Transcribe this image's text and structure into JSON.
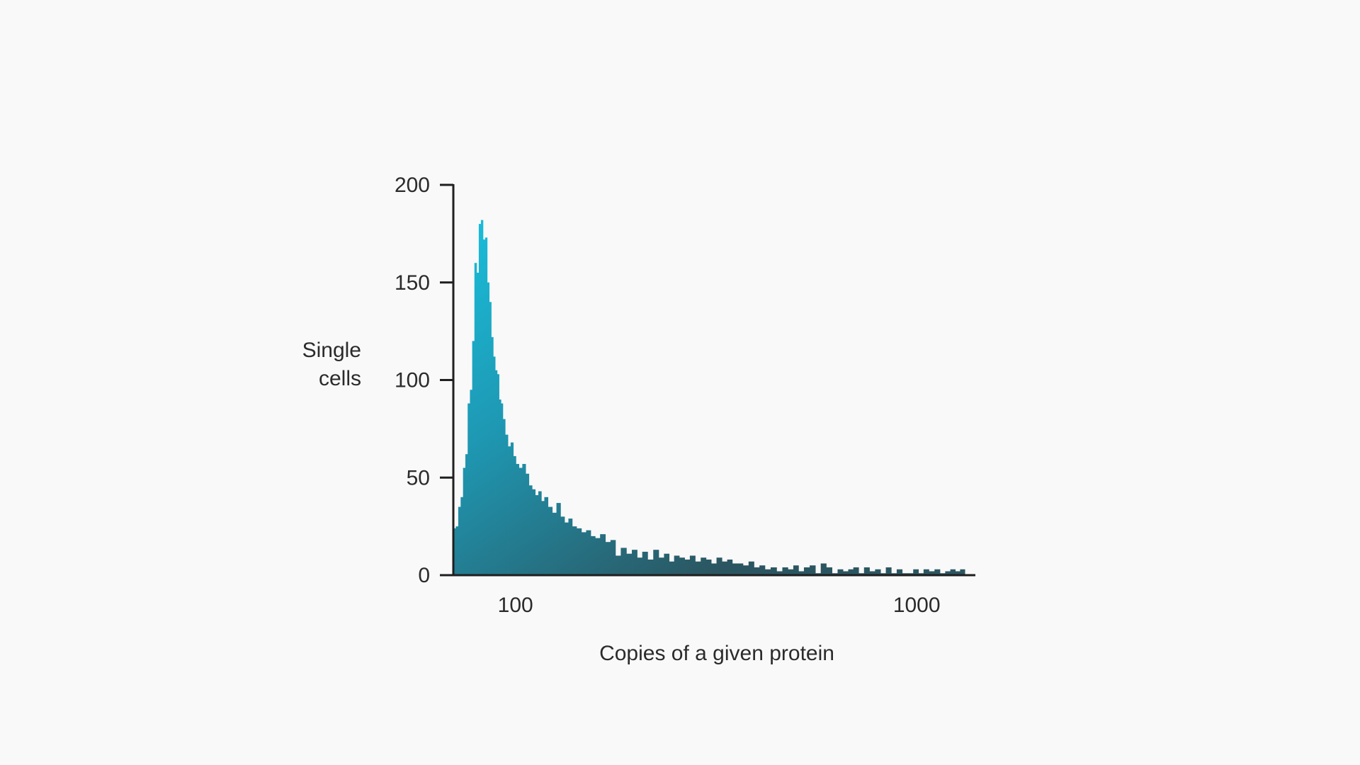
{
  "chart_data": {
    "type": "bar",
    "title": "",
    "xlabel": "Copies of a given protein",
    "ylabel": [
      "Single",
      "cells"
    ],
    "x_scale": "log",
    "xlim": [
      70,
      1400
    ],
    "ylim": [
      0,
      200
    ],
    "grid": false,
    "legend": "none",
    "y_ticks": [
      0,
      50,
      100,
      150,
      200
    ],
    "y_tick_labels": [
      "0",
      "50",
      "100",
      "150",
      "200"
    ],
    "x_ticks": [
      100,
      1000
    ],
    "x_tick_labels": [
      "100",
      "1000"
    ],
    "colors": {
      "peak": "#18b5d4",
      "tail": "#2c5560",
      "axis": "#1f1f1f",
      "background": "#f9f9f9"
    },
    "bins": [
      {
        "x": 70.5,
        "y": 24
      },
      {
        "x": 71.5,
        "y": 25
      },
      {
        "x": 72.5,
        "y": 35
      },
      {
        "x": 73.5,
        "y": 40
      },
      {
        "x": 74.5,
        "y": 55
      },
      {
        "x": 75.5,
        "y": 62
      },
      {
        "x": 76.5,
        "y": 88
      },
      {
        "x": 77.5,
        "y": 95
      },
      {
        "x": 78.5,
        "y": 120
      },
      {
        "x": 79.5,
        "y": 160
      },
      {
        "x": 80.5,
        "y": 155
      },
      {
        "x": 81.5,
        "y": 180
      },
      {
        "x": 82.5,
        "y": 182
      },
      {
        "x": 83.5,
        "y": 172
      },
      {
        "x": 84.5,
        "y": 173
      },
      {
        "x": 85.5,
        "y": 150
      },
      {
        "x": 86.5,
        "y": 140
      },
      {
        "x": 87.5,
        "y": 122
      },
      {
        "x": 88.5,
        "y": 112
      },
      {
        "x": 89.5,
        "y": 105
      },
      {
        "x": 90.5,
        "y": 103
      },
      {
        "x": 91.5,
        "y": 90
      },
      {
        "x": 92.5,
        "y": 88
      },
      {
        "x": 93.5,
        "y": 80
      },
      {
        "x": 95,
        "y": 72
      },
      {
        "x": 96.5,
        "y": 66
      },
      {
        "x": 98,
        "y": 68
      },
      {
        "x": 99.5,
        "y": 61
      },
      {
        "x": 101,
        "y": 57
      },
      {
        "x": 103,
        "y": 55
      },
      {
        "x": 105,
        "y": 57
      },
      {
        "x": 107,
        "y": 52
      },
      {
        "x": 109,
        "y": 46
      },
      {
        "x": 111,
        "y": 44
      },
      {
        "x": 113,
        "y": 41
      },
      {
        "x": 115,
        "y": 43
      },
      {
        "x": 117,
        "y": 38
      },
      {
        "x": 119,
        "y": 40
      },
      {
        "x": 122,
        "y": 35
      },
      {
        "x": 125,
        "y": 32
      },
      {
        "x": 128,
        "y": 37
      },
      {
        "x": 131,
        "y": 30
      },
      {
        "x": 134,
        "y": 27
      },
      {
        "x": 137,
        "y": 29
      },
      {
        "x": 140,
        "y": 25
      },
      {
        "x": 144,
        "y": 24
      },
      {
        "x": 148,
        "y": 22
      },
      {
        "x": 152,
        "y": 23
      },
      {
        "x": 156,
        "y": 20
      },
      {
        "x": 160,
        "y": 19
      },
      {
        "x": 165,
        "y": 21
      },
      {
        "x": 170,
        "y": 17
      },
      {
        "x": 175,
        "y": 18
      },
      {
        "x": 180,
        "y": 10
      },
      {
        "x": 186,
        "y": 14
      },
      {
        "x": 192,
        "y": 11
      },
      {
        "x": 198,
        "y": 13
      },
      {
        "x": 204,
        "y": 9
      },
      {
        "x": 210,
        "y": 12
      },
      {
        "x": 217,
        "y": 8
      },
      {
        "x": 224,
        "y": 13
      },
      {
        "x": 231,
        "y": 9
      },
      {
        "x": 238,
        "y": 11
      },
      {
        "x": 245,
        "y": 7
      },
      {
        "x": 252,
        "y": 10
      },
      {
        "x": 260,
        "y": 9
      },
      {
        "x": 268,
        "y": 8
      },
      {
        "x": 276,
        "y": 10
      },
      {
        "x": 285,
        "y": 7
      },
      {
        "x": 294,
        "y": 9
      },
      {
        "x": 303,
        "y": 8
      },
      {
        "x": 312,
        "y": 6
      },
      {
        "x": 322,
        "y": 9
      },
      {
        "x": 332,
        "y": 7
      },
      {
        "x": 342,
        "y": 8
      },
      {
        "x": 352,
        "y": 6
      },
      {
        "x": 363,
        "y": 6
      },
      {
        "x": 375,
        "y": 5
      },
      {
        "x": 387,
        "y": 7
      },
      {
        "x": 399,
        "y": 4
      },
      {
        "x": 412,
        "y": 5
      },
      {
        "x": 425,
        "y": 3
      },
      {
        "x": 440,
        "y": 4
      },
      {
        "x": 455,
        "y": 2
      },
      {
        "x": 470,
        "y": 4
      },
      {
        "x": 485,
        "y": 3
      },
      {
        "x": 500,
        "y": 5
      },
      {
        "x": 515,
        "y": 2
      },
      {
        "x": 532,
        "y": 4
      },
      {
        "x": 550,
        "y": 5
      },
      {
        "x": 568,
        "y": 1
      },
      {
        "x": 585,
        "y": 6
      },
      {
        "x": 605,
        "y": 4
      },
      {
        "x": 625,
        "y": 1
      },
      {
        "x": 645,
        "y": 3
      },
      {
        "x": 665,
        "y": 2
      },
      {
        "x": 685,
        "y": 3
      },
      {
        "x": 705,
        "y": 4
      },
      {
        "x": 728,
        "y": 1
      },
      {
        "x": 750,
        "y": 4
      },
      {
        "x": 775,
        "y": 2
      },
      {
        "x": 800,
        "y": 3
      },
      {
        "x": 825,
        "y": 1
      },
      {
        "x": 850,
        "y": 4
      },
      {
        "x": 878,
        "y": 1
      },
      {
        "x": 905,
        "y": 3
      },
      {
        "x": 935,
        "y": 1
      },
      {
        "x": 965,
        "y": 1
      },
      {
        "x": 995,
        "y": 3
      },
      {
        "x": 1025,
        "y": 1
      },
      {
        "x": 1055,
        "y": 3
      },
      {
        "x": 1090,
        "y": 2
      },
      {
        "x": 1125,
        "y": 3
      },
      {
        "x": 1160,
        "y": 1
      },
      {
        "x": 1195,
        "y": 2
      },
      {
        "x": 1230,
        "y": 3
      },
      {
        "x": 1265,
        "y": 2
      },
      {
        "x": 1300,
        "y": 3
      }
    ]
  }
}
